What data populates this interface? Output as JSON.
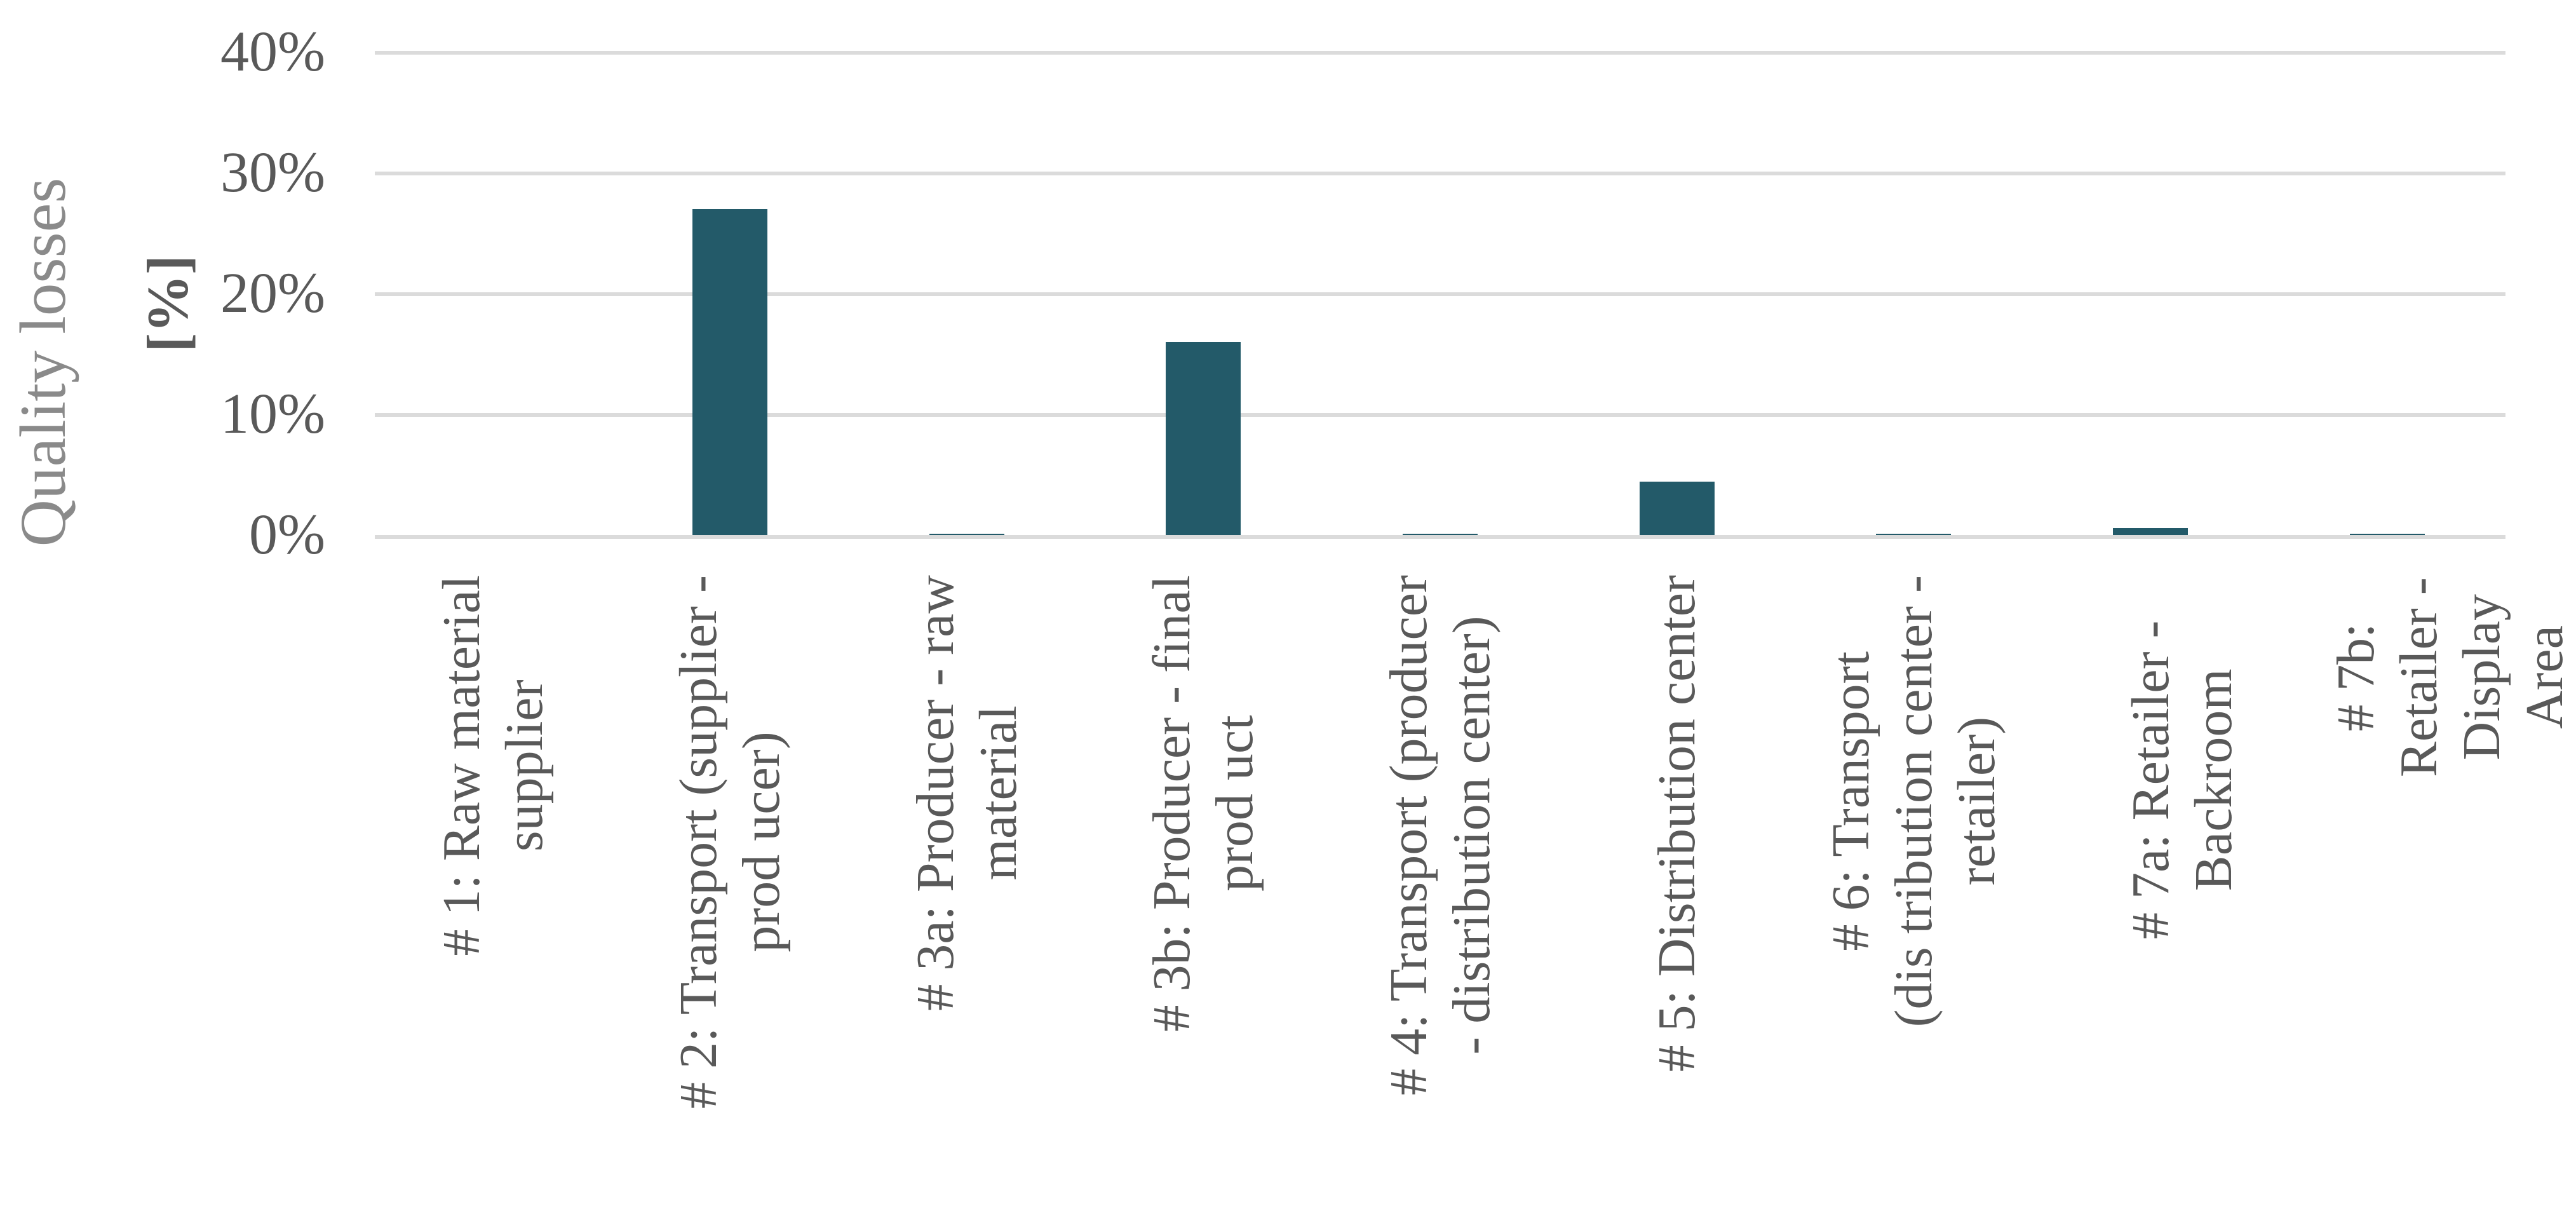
{
  "chart": {
    "ylabel_title": "Quality losses",
    "ylabel_unit": "[%]"
  },
  "chart_data": {
    "type": "bar",
    "title": "",
    "xlabel": "",
    "ylabel": "Quality losses [%]",
    "categories": [
      "#1: Raw material supplier",
      "#2: Transport (supplier - producer)",
      "#3a: Producer - raw material",
      "#3b: Producer - final product",
      "#4: Transport (producer - distribution center)",
      "#5: Distribution center",
      "#6: Transport (distribution center - retailer)",
      "#7a: Retailer - Backroom",
      "#7b: Retailer - Display Area"
    ],
    "category_labels": [
      "# 1: Raw material\nsupplier",
      "# 2: Transport (supplier -\nprod ucer)",
      "# 3a: Producer - raw\nmaterial",
      "# 3b: Producer - final\nprod uct",
      "# 4: Transport (producer\n- distribution center)",
      "# 5: Distribution center",
      "# 6: Transport\n(dis tribution center -\nretailer)",
      "# 7a: Retailer - Backroom",
      "# 7b: Retailer - Display\nArea"
    ],
    "values": [
      0,
      27,
      0.1,
      16,
      0.1,
      4.4,
      0.1,
      0.6,
      0.1
    ],
    "unit": "%",
    "yticks": [
      "0%",
      "10%",
      "20%",
      "30%",
      "40%"
    ],
    "ytick_values": [
      0,
      10,
      20,
      30,
      40
    ],
    "ylim": [
      0,
      40
    ],
    "grid": "horizontal gridlines on, no axis lines, no legend",
    "legend": false,
    "colors": {
      "bar": "#235A69",
      "gridline": "#DBDBDB",
      "tick_text": "#595959",
      "category_text": "#595959",
      "axis_title": "#8A8A8A",
      "background": "#FFFFFF"
    }
  }
}
